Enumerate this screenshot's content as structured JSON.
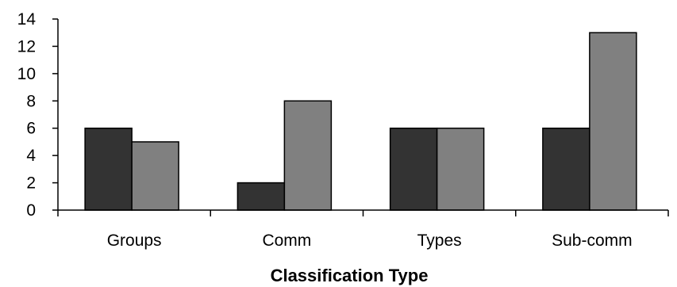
{
  "chart_data": {
    "type": "bar",
    "title": "",
    "xlabel": "Classification Type",
    "ylabel": "",
    "ylim": [
      0,
      14
    ],
    "yticks": [
      0,
      2,
      4,
      6,
      8,
      10,
      12,
      14
    ],
    "grid": false,
    "legend": "none",
    "categories": [
      "Groups",
      "Comm",
      "Types",
      "Sub-comm"
    ],
    "series": [
      {
        "values": [
          6,
          2,
          6,
          6
        ],
        "color": "#333333"
      },
      {
        "values": [
          5,
          8,
          6,
          13
        ],
        "color": "#808080"
      }
    ]
  }
}
